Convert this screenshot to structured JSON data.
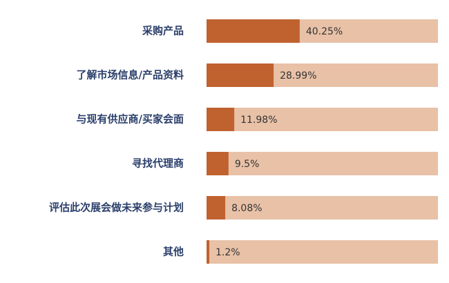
{
  "chart_data": {
    "type": "bar",
    "orientation": "horizontal",
    "categories": [
      "采购产品",
      "了解市场信息/产品资料",
      "与现有供应商/买家会面",
      "寻找代理商",
      "评估此次展会做未来参与计划",
      "其他"
    ],
    "values": [
      40.25,
      28.99,
      11.98,
      9.5,
      8.08,
      1.2
    ],
    "value_labels": [
      "40.25%",
      "28.99%",
      "11.98%",
      "9.5%",
      "8.08%",
      "1.2%"
    ],
    "color": "#c0622f",
    "track_color": "#e8c1a7",
    "xlim": [
      0,
      100
    ]
  }
}
